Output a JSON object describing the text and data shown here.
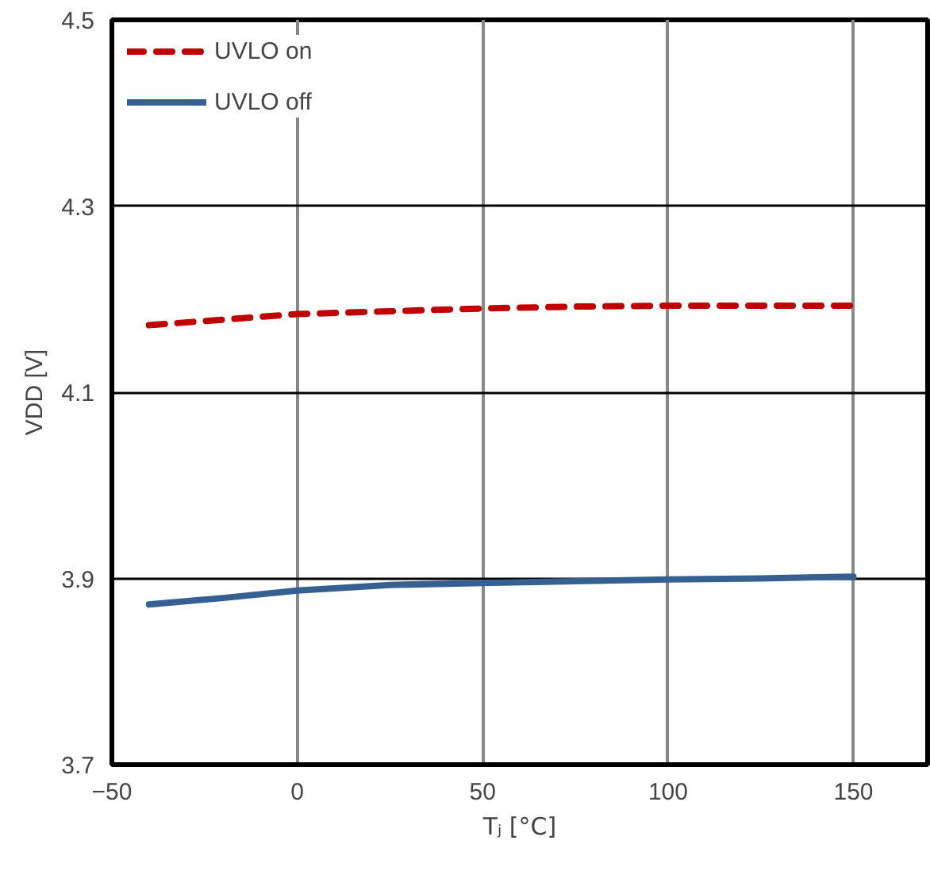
{
  "chart_data": {
    "type": "line",
    "xlabel": "Tⱼ [°C]",
    "ylabel": "VDD [V]",
    "xlim": [
      -50,
      170
    ],
    "xticks": [
      -50,
      0,
      50,
      100,
      150
    ],
    "ylim": [
      3.7,
      4.5
    ],
    "yticks": [
      3.7,
      3.9,
      4.1,
      4.3,
      4.5
    ],
    "grid": true,
    "legend": "top left",
    "series": [
      {
        "name": "UVLO on",
        "color": "#c00000",
        "line_style": "dashed",
        "x": [
          -40,
          -20,
          0,
          25,
          50,
          75,
          100,
          125,
          150
        ],
        "values": [
          4.172,
          4.178,
          4.184,
          4.187,
          4.19,
          4.192,
          4.193,
          4.193,
          4.193
        ]
      },
      {
        "name": "UVLO off",
        "color": "#376092",
        "line_style": "solid",
        "x": [
          -40,
          -20,
          0,
          25,
          50,
          75,
          100,
          125,
          150
        ],
        "values": [
          3.872,
          3.879,
          3.887,
          3.893,
          3.895,
          3.897,
          3.899,
          3.9,
          3.902
        ]
      }
    ]
  }
}
